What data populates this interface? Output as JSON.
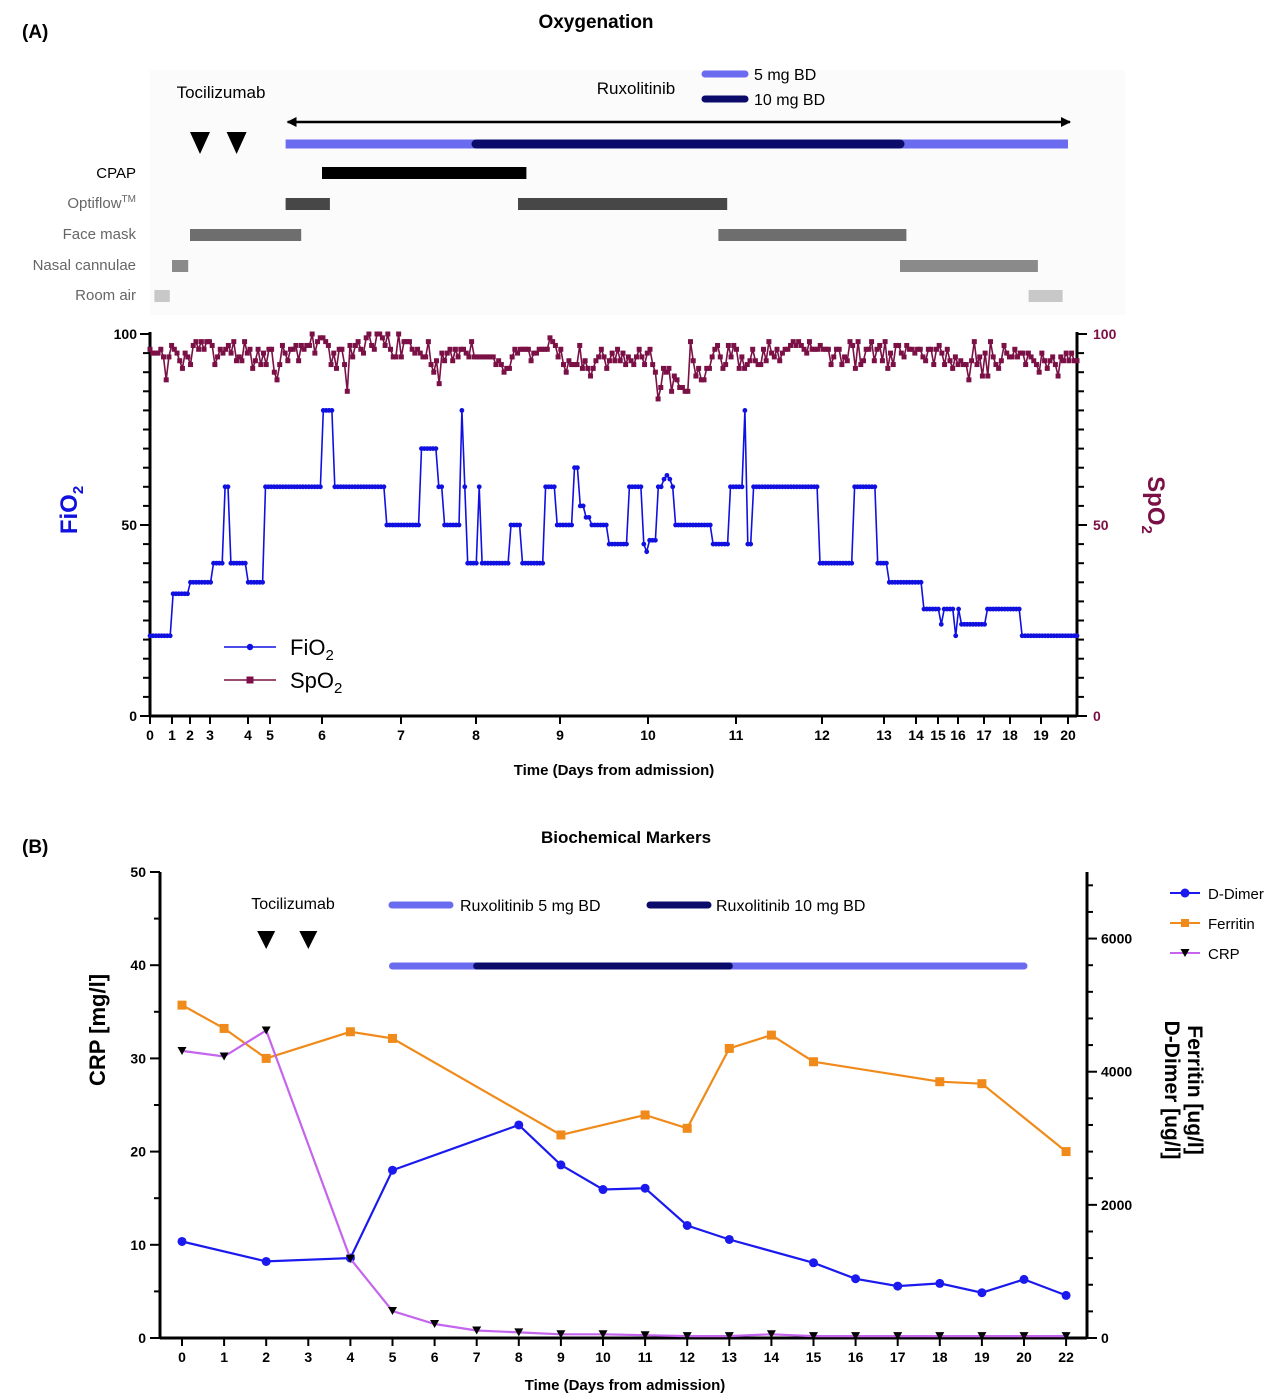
{
  "colors": {
    "fio2": "#1010e0",
    "spo2": "#7a1045",
    "rux5": "#6b6bf0",
    "rux10": "#0b0b6b",
    "ddimer": "#1a1aee",
    "ferritin": "#f08a1a",
    "crp": "#c565ee",
    "cpap": "#000000",
    "optiflow": "#474747",
    "facemask": "#6e6e6e",
    "nasal": "#8a8a8a",
    "roomair": "#c8c8c8"
  },
  "panelA": {
    "panel_label": "(A)",
    "title": "Oxygenation",
    "tocilizumab_label": "Tocilizumab",
    "ruxolitinib_label": "Ruxolitinib",
    "legend_5mg": "5 mg BD",
    "legend_10mg": "10 mg BD",
    "cpap_label": "CPAP",
    "optiflow_label": "Optiflow",
    "optiflow_sup": "TM",
    "facemask_label": "Face mask",
    "nasal_label": "Nasal cannulae",
    "roomair_label": "Room air",
    "ylabel_left_main": "FiO",
    "ylabel_left_sub": "2",
    "ylabel_right_main": "SpO",
    "ylabel_right_sub": "2",
    "xlabel": "Time (Days from admission)",
    "legend_fio2_main": "FiO",
    "legend_fio2_sub": "2",
    "legend_spo2_main": "SpO",
    "legend_spo2_sub": "2"
  },
  "panelB": {
    "panel_label": "(B)",
    "title": "Biochemical Markers",
    "tocilizumab_label": "Tocilizumab",
    "rux5_label": "Ruxolitinib 5 mg BD",
    "rux10_label": "Ruxolitinib 10 mg BD",
    "ylabel_left": "CRP [mg/l]",
    "ylabel_right_1": "D-Dimer [ug/l]",
    "ylabel_right_2": "Ferritin [ug/l]",
    "xlabel": "Time (Days from admission)",
    "legend_ddimer": "D-Dimer",
    "legend_ferritin": "Ferritin",
    "legend_crp": "CRP"
  },
  "chart_data": [
    {
      "type": "line",
      "title": "Oxygenation",
      "xlabel": "Time (Days from admission)",
      "ylabel_left": "FiO2",
      "ylabel_right": "SpO2",
      "x_tick_labels": [
        "0",
        "1",
        "2",
        "3",
        "4",
        "5",
        "6",
        "7",
        "8",
        "9",
        "10",
        "11",
        "12",
        "13",
        "14",
        "15",
        "16",
        "17",
        "18",
        "19",
        "20"
      ],
      "ylim_left": [
        0,
        100
      ],
      "ylim_right": [
        0,
        100
      ],
      "y_ticks": [
        0,
        50,
        100
      ],
      "tocilizumab_doses_day": [
        2.5,
        3.7
      ],
      "ruxolitinib": {
        "start_day": 5.3,
        "end_day": 20,
        "dose_5mg_BD": [
          [
            5.3,
            8
          ],
          [
            13.5,
            20
          ]
        ],
        "dose_10mg_BD": [
          [
            8,
            13.5
          ]
        ]
      },
      "oxygen_support": [
        {
          "mode": "Room air",
          "intervals": [
            [
              0.2,
              0.9
            ],
            [
              18.6,
              19.8
            ]
          ]
        },
        {
          "mode": "Nasal cannulae",
          "intervals": [
            [
              1.0,
              1.9
            ],
            [
              13.5,
              18.9
            ]
          ]
        },
        {
          "mode": "Face mask",
          "intervals": [
            [
              2.0,
              5.6
            ],
            [
              10.8,
              13.7
            ]
          ]
        },
        {
          "mode": "Optiflow",
          "intervals": [
            [
              5.3,
              6.1
            ],
            [
              8.5,
              10.9
            ]
          ]
        },
        {
          "mode": "CPAP",
          "intervals": [
            [
              6.0,
              8.6
            ]
          ]
        }
      ],
      "series": [
        {
          "name": "FiO2",
          "values": [
            21,
            21,
            21,
            21,
            21,
            21,
            21,
            21,
            32,
            32,
            32,
            32,
            32,
            32,
            35,
            35,
            35,
            35,
            35,
            35,
            35,
            35,
            40,
            40,
            40,
            40,
            60,
            60,
            40,
            40,
            40,
            40,
            40,
            40,
            35,
            35,
            35,
            35,
            35,
            35,
            60,
            60,
            60,
            60,
            60,
            60,
            60,
            60,
            60,
            60,
            60,
            60,
            60,
            60,
            60,
            60,
            60,
            60,
            60,
            60,
            80,
            80,
            80,
            80,
            60,
            60,
            60,
            60,
            60,
            60,
            60,
            60,
            60,
            60,
            60,
            60,
            60,
            60,
            60,
            60,
            60,
            60,
            50,
            50,
            50,
            50,
            50,
            50,
            50,
            50,
            50,
            50,
            50,
            50,
            70,
            70,
            70,
            70,
            70,
            70,
            60,
            60,
            50,
            50,
            50,
            50,
            50,
            50,
            80,
            60,
            40,
            40,
            40,
            40,
            60,
            40,
            40,
            40,
            40,
            40,
            40,
            40,
            40,
            40,
            40,
            50,
            50,
            50,
            50,
            40,
            40,
            40,
            40,
            40,
            40,
            40,
            40,
            60,
            60,
            60,
            60,
            50,
            50,
            50,
            50,
            50,
            50,
            65,
            65,
            55,
            55,
            52,
            52,
            50,
            50,
            50,
            50,
            50,
            50,
            45,
            45,
            45,
            45,
            45,
            45,
            45,
            60,
            60,
            60,
            60,
            60,
            45,
            43,
            46,
            46,
            46,
            60,
            60,
            62,
            63,
            62,
            60,
            50,
            50,
            50,
            50,
            50,
            50,
            50,
            50,
            50,
            50,
            50,
            50,
            50,
            45,
            45,
            45,
            45,
            45,
            45,
            60,
            60,
            60,
            60,
            60,
            80,
            45,
            45,
            60,
            60,
            60,
            60,
            60,
            60,
            60,
            60,
            60,
            60,
            60,
            60,
            60,
            60,
            60,
            60,
            60,
            60,
            60,
            60,
            60,
            60,
            60,
            40,
            40,
            40,
            40,
            40,
            40,
            40,
            40,
            40,
            40,
            40,
            40,
            60,
            60,
            60,
            60,
            60,
            60,
            60,
            60,
            40,
            40,
            40,
            40,
            35,
            35,
            35,
            35,
            35,
            35,
            35,
            35,
            35,
            35,
            35,
            35,
            28,
            28,
            28,
            28,
            28,
            28,
            24,
            28,
            28,
            28,
            28,
            21,
            28,
            24,
            24,
            24,
            24,
            24,
            24,
            24,
            24,
            24,
            28,
            28,
            28,
            28,
            28,
            28,
            28,
            28,
            28,
            28,
            28,
            28,
            21,
            21,
            21,
            21,
            21,
            21,
            21,
            21,
            21,
            21,
            21,
            21,
            21,
            21,
            21,
            21,
            21,
            21,
            21,
            21
          ]
        },
        {
          "name": "SpO2",
          "values": [
            96,
            95,
            95,
            95,
            96,
            94,
            88,
            94,
            97,
            96,
            95,
            93,
            91,
            95,
            94,
            92,
            97,
            98,
            96,
            98,
            96,
            98,
            98,
            97,
            92,
            94,
            96,
            95,
            96,
            97,
            95,
            98,
            93,
            94,
            93,
            98,
            95,
            96,
            91,
            93,
            96,
            92,
            95,
            92,
            96,
            96,
            90,
            88,
            92,
            97,
            95,
            93,
            96,
            96,
            97,
            93,
            97,
            96,
            97,
            97,
            100,
            95,
            98,
            99,
            99,
            98,
            97,
            92,
            95,
            91,
            96,
            96,
            92,
            85,
            97,
            94,
            97,
            98,
            96,
            95,
            99,
            100,
            97,
            96,
            100,
            100,
            99,
            97,
            100,
            96,
            94,
            94,
            100,
            94,
            98,
            98,
            98,
            96,
            95,
            96,
            95,
            94,
            94,
            98,
            92,
            90,
            93,
            87,
            95,
            93,
            95,
            96,
            93,
            96,
            94,
            96,
            96,
            95,
            94,
            98,
            94,
            94,
            94,
            94,
            94,
            94,
            94,
            94,
            92,
            93,
            92,
            90,
            91,
            91,
            94,
            96,
            95,
            96,
            96,
            96,
            96,
            93,
            95,
            95,
            96,
            96,
            96,
            96,
            99,
            98,
            97,
            94,
            96,
            92,
            90,
            93,
            92,
            92,
            92,
            97,
            91,
            93,
            91,
            89,
            91,
            93,
            94,
            96,
            94,
            91,
            93,
            95,
            93,
            96,
            93,
            95,
            92,
            94,
            93,
            92,
            94,
            96,
            94,
            92,
            95,
            96,
            92,
            90,
            83,
            86,
            91,
            90,
            91,
            85,
            89,
            88,
            86,
            86,
            85,
            85,
            98,
            93,
            89,
            91,
            88,
            88,
            91,
            91,
            94,
            96,
            97,
            94,
            91,
            92,
            97,
            94,
            97,
            96,
            91,
            94,
            91,
            92,
            93,
            96,
            93,
            92,
            92,
            96,
            93,
            98,
            95,
            94,
            96,
            93,
            95,
            96,
            96,
            97,
            98,
            97,
            98,
            97,
            96,
            95,
            98,
            96,
            96,
            96,
            97,
            96,
            96,
            96,
            92,
            94,
            96,
            96,
            92,
            94,
            93,
            98,
            97,
            91,
            98,
            92,
            93,
            96,
            96,
            98,
            93,
            96,
            97,
            93,
            98,
            91,
            95,
            92,
            97,
            97,
            95,
            94,
            97,
            96,
            96,
            95,
            96,
            96,
            94,
            93,
            96,
            96,
            92,
            96,
            97,
            95,
            92,
            96,
            93,
            91,
            94,
            92,
            93,
            92,
            92,
            88,
            93,
            98,
            92,
            94,
            89,
            95,
            89,
            98,
            94,
            92,
            91,
            93,
            97,
            95,
            94,
            94,
            96,
            94,
            95,
            95,
            92,
            95,
            94,
            93,
            92,
            90,
            95,
            93,
            91,
            93,
            94,
            92,
            89,
            94,
            93,
            95,
            93,
            95,
            93,
            93
          ]
        }
      ]
    },
    {
      "type": "line",
      "title": "Biochemical Markers",
      "xlabel": "Time (Days from admission)",
      "ylabel_left": "CRP [mg/l]",
      "ylabel_right": "D-Dimer [ug/l] / Ferritin [ug/l]",
      "categories": [
        "0",
        "1",
        "2",
        "3",
        "4",
        "5",
        "6",
        "7",
        "8",
        "9",
        "10",
        "11",
        "12",
        "13",
        "14",
        "15",
        "16",
        "17",
        "18",
        "19",
        "20",
        "22"
      ],
      "ylim_left": [
        0,
        50
      ],
      "ylim_right": [
        0,
        7000
      ],
      "y_ticks_left": [
        0,
        10,
        20,
        30,
        40,
        50
      ],
      "y_ticks_right": [
        0,
        2000,
        4000,
        6000
      ],
      "tocilizumab_doses_day": [
        2,
        3
      ],
      "ruxolitinib": {
        "dose_5mg_BD": [
          [
            5,
            7
          ],
          [
            13,
            20
          ]
        ],
        "dose_10mg_BD": [
          [
            7,
            13
          ]
        ]
      },
      "series": [
        {
          "name": "D-Dimer",
          "axis": "right",
          "x": [
            0,
            2,
            4,
            5,
            8,
            9,
            10,
            11,
            12,
            13,
            15,
            16,
            17,
            18,
            19,
            20,
            22
          ],
          "values": [
            1450,
            1150,
            1200,
            2520,
            3200,
            2600,
            2230,
            2250,
            1690,
            1480,
            1130,
            890,
            780,
            820,
            680,
            880,
            640
          ]
        },
        {
          "name": "Ferritin",
          "axis": "right",
          "x": [
            0,
            1,
            2,
            4,
            5,
            9,
            11,
            12,
            13,
            14,
            15,
            18,
            19,
            22
          ],
          "values": [
            5000,
            4650,
            4200,
            4600,
            4500,
            3050,
            3350,
            3150,
            4350,
            4550,
            4150,
            3850,
            3820,
            2800
          ]
        },
        {
          "name": "CRP",
          "axis": "left",
          "x": [
            0,
            1,
            2,
            4,
            5,
            6,
            7,
            8,
            9,
            10,
            11,
            12,
            13,
            14,
            15,
            16,
            17,
            18,
            19,
            20,
            22
          ],
          "values": [
            30.8,
            30.2,
            33,
            8.5,
            2.9,
            1.5,
            0.8,
            0.6,
            0.4,
            0.4,
            0.3,
            0.2,
            0.2,
            0.4,
            0.2,
            0.2,
            0.2,
            0.2,
            0.2,
            0.2,
            0.2
          ]
        }
      ]
    }
  ]
}
